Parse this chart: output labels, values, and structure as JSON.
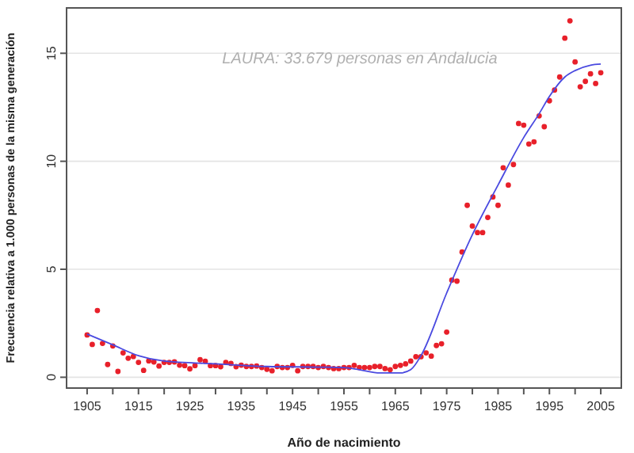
{
  "chart_data": {
    "type": "scatter",
    "xlabel": "Año de nacimiento",
    "ylabel": "Frecuencia relativa a 1.000 personas de la misma generación",
    "annotations": [
      "LAURA: 33.679 personas en Andalucia"
    ],
    "xlim": [
      1901,
      2009
    ],
    "ylim": [
      -0.5,
      17.1
    ],
    "xticks": [
      1905,
      {
        "value": 1910,
        "label": null
      },
      1915,
      {
        "value": 1920,
        "label": null
      },
      1925,
      {
        "value": 1930,
        "label": null
      },
      1935,
      {
        "value": 1940,
        "label": null
      },
      1945,
      {
        "value": 1950,
        "label": null
      },
      1955,
      {
        "value": 1960,
        "label": null
      },
      1965,
      {
        "value": 1970,
        "label": null
      },
      1975,
      {
        "value": 1980,
        "label": null
      },
      1985,
      {
        "value": 1990,
        "label": null
      },
      1995,
      {
        "value": 2000,
        "label": null
      },
      2005
    ],
    "yticks": [
      0,
      5,
      10,
      15
    ],
    "grid": true,
    "marker": "circle",
    "series": [
      {
        "color": "#e8202a",
        "x": [
          1905,
          1906,
          1907,
          1908,
          1909,
          1910,
          1911,
          1912,
          1913,
          1914,
          1915,
          1916,
          1917,
          1918,
          1919,
          1920,
          1921,
          1922,
          1923,
          1924,
          1925,
          1926,
          1927,
          1928,
          1929,
          1930,
          1931,
          1932,
          1933,
          1934,
          1935,
          1936,
          1937,
          1938,
          1939,
          1940,
          1941,
          1942,
          1943,
          1944,
          1945,
          1946,
          1947,
          1948,
          1949,
          1950,
          1951,
          1952,
          1953,
          1954,
          1955,
          1956,
          1957,
          1958,
          1959,
          1960,
          1961,
          1962,
          1963,
          1964,
          1965,
          1966,
          1967,
          1968,
          1969,
          1970,
          1971,
          1972,
          1973,
          1974,
          1975,
          1976,
          1977,
          1978,
          1979,
          1980,
          1981,
          1982,
          1983,
          1984,
          1985,
          1986,
          1987,
          1988,
          1989,
          1990,
          1991,
          1992,
          1993,
          1994,
          1995,
          1996,
          1997,
          1998,
          1999,
          2000,
          2001,
          2002,
          2003,
          2004,
          2005
        ],
        "values": [
          1.96,
          1.52,
          3.09,
          1.57,
          0.59,
          1.45,
          0.27,
          1.13,
          0.88,
          0.96,
          0.69,
          0.32,
          0.76,
          0.71,
          0.52,
          0.69,
          0.69,
          0.71,
          0.56,
          0.54,
          0.39,
          0.54,
          0.81,
          0.74,
          0.54,
          0.54,
          0.49,
          0.69,
          0.64,
          0.49,
          0.56,
          0.5,
          0.5,
          0.52,
          0.45,
          0.37,
          0.3,
          0.5,
          0.45,
          0.45,
          0.55,
          0.3,
          0.5,
          0.5,
          0.5,
          0.45,
          0.5,
          0.45,
          0.4,
          0.4,
          0.45,
          0.45,
          0.55,
          0.45,
          0.45,
          0.45,
          0.5,
          0.5,
          0.4,
          0.35,
          0.5,
          0.55,
          0.62,
          0.75,
          0.95,
          0.95,
          1.13,
          0.98,
          1.47,
          1.55,
          2.09,
          4.5,
          4.45,
          5.8,
          7.96,
          7.0,
          6.7,
          6.7,
          7.4,
          8.35,
          7.96,
          9.7,
          8.9,
          9.85,
          11.75,
          11.67,
          10.8,
          10.9,
          12.1,
          11.6,
          12.8,
          13.3,
          13.9,
          15.7,
          16.5,
          14.6,
          13.45,
          13.7,
          14.05,
          13.6,
          14.1
        ]
      },
      {
        "type": "line",
        "color": "#4a4ae0",
        "marker": "none",
        "x": [
          1905,
          1910,
          1915,
          1920,
          1930,
          1940,
          1950,
          1955,
          1958,
          1962,
          1966,
          1968,
          1970,
          1975,
          1980,
          1985,
          1990,
          1993,
          1995,
          1998,
          2000,
          2003,
          2005
        ],
        "values": [
          2.0,
          1.5,
          1.0,
          0.75,
          0.62,
          0.5,
          0.47,
          0.45,
          0.35,
          0.2,
          0.2,
          0.35,
          1.0,
          3.9,
          6.6,
          8.9,
          11.1,
          12.2,
          13.0,
          13.9,
          14.2,
          14.45,
          14.5
        ]
      }
    ]
  }
}
